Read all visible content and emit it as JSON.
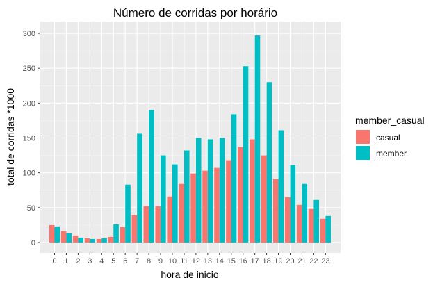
{
  "chart_data": {
    "type": "bar",
    "title": "Número de corridas por horário",
    "xlabel": "hora de inicio",
    "ylabel": "total de corridas *1000",
    "categories": [
      "0",
      "1",
      "2",
      "3",
      "4",
      "5",
      "6",
      "7",
      "8",
      "9",
      "10",
      "11",
      "12",
      "13",
      "14",
      "15",
      "16",
      "17",
      "18",
      "19",
      "20",
      "21",
      "22",
      "23"
    ],
    "series": [
      {
        "name": "casual",
        "color": "#F8766D",
        "values": [
          25,
          16,
          10,
          6,
          5,
          8,
          22,
          39,
          52,
          52,
          66,
          84,
          99,
          103,
          107,
          118,
          137,
          148,
          125,
          91,
          65,
          54,
          48,
          34
        ]
      },
      {
        "name": "member",
        "color": "#00BFC4",
        "values": [
          23,
          13,
          7,
          5,
          6,
          26,
          83,
          156,
          190,
          125,
          112,
          132,
          150,
          148,
          150,
          184,
          253,
          297,
          230,
          161,
          111,
          84,
          61,
          38
        ]
      }
    ],
    "yticks": [
      0,
      50,
      100,
      150,
      200,
      250,
      300
    ],
    "ylim": [
      -15,
      317
    ],
    "grid": true,
    "legend": {
      "title": "member_casual",
      "position": "right",
      "entries": [
        "casual",
        "member"
      ]
    }
  }
}
